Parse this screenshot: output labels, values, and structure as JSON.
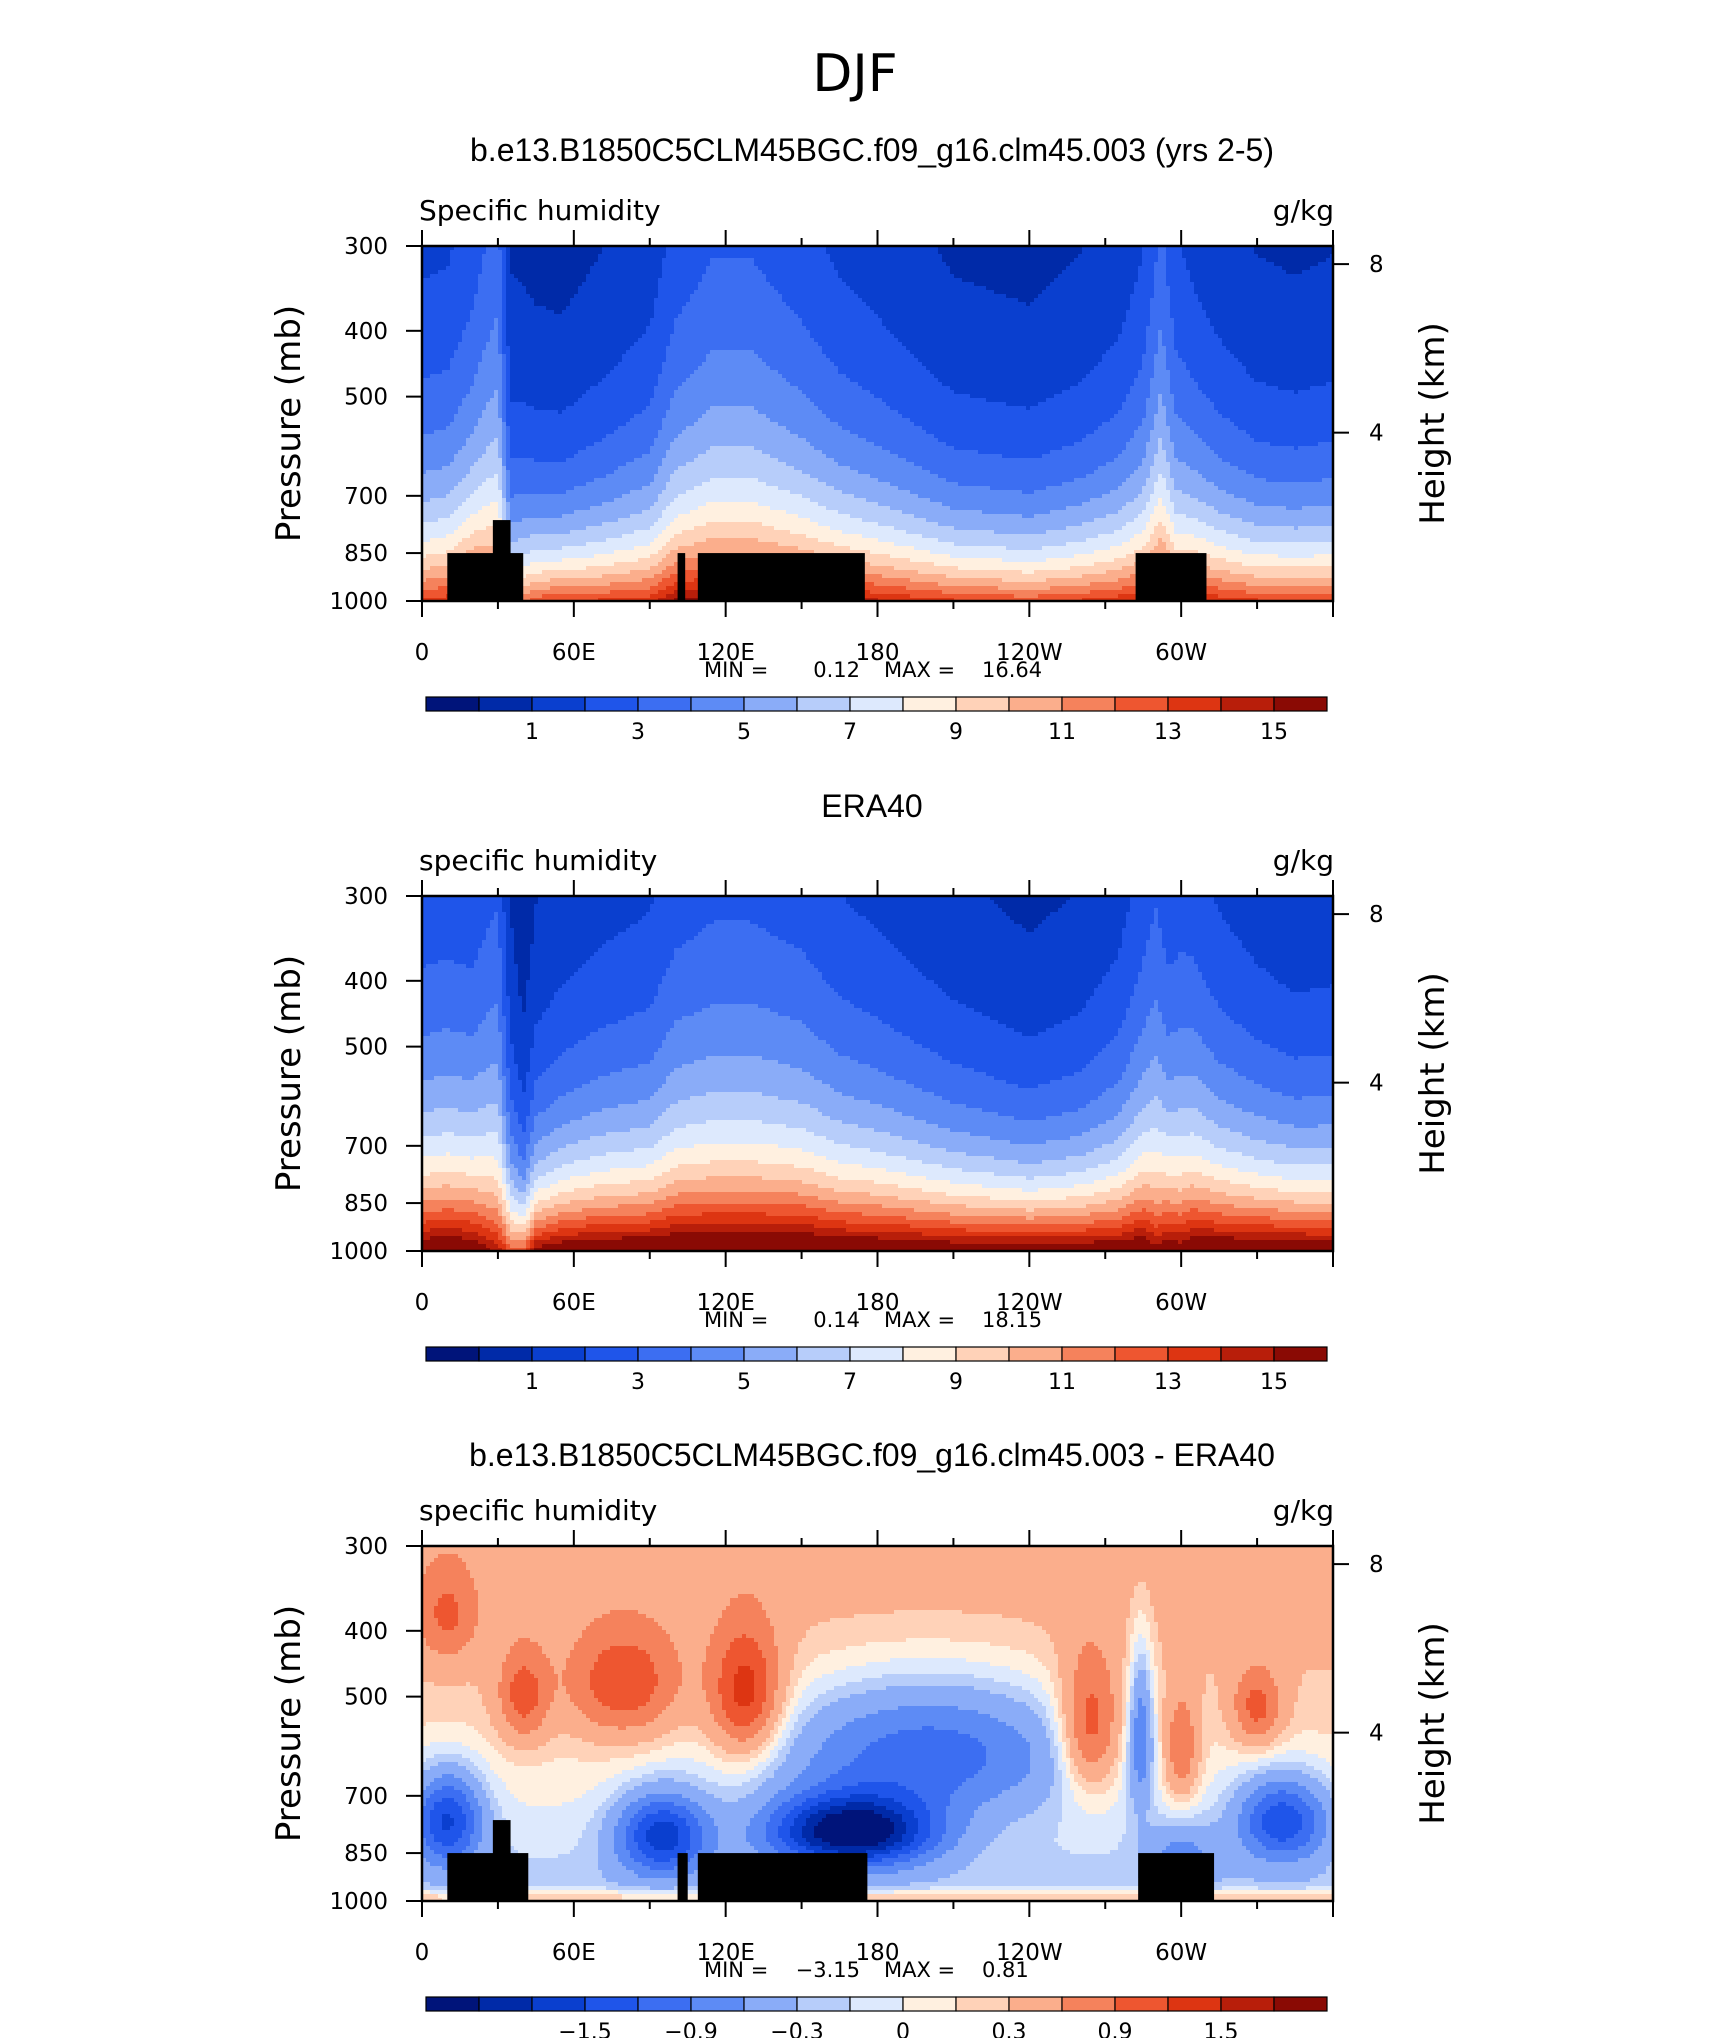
{
  "page_title": "DJF",
  "chart_data": [
    {
      "type": "heatmap",
      "title": "b.e13.B1850C5CLM45BGC.f09_g16.clm45.003 (yrs 2-5)",
      "left_string": "Specific humidity",
      "right_string": "g/kg",
      "xlabel": "",
      "ylabel": "Pressure (mb)",
      "ylabel_right": "Height (km)",
      "x_ticks": [
        "0",
        "60E",
        "120E",
        "180",
        "120W",
        "60W"
      ],
      "y_ticks": [
        "300",
        "400",
        "500",
        "700",
        "850",
        "1000"
      ],
      "y_right_ticks": [
        "8",
        "4"
      ],
      "xlim": [
        0,
        360
      ],
      "ylim": [
        1000,
        300
      ],
      "min_label": "MIN =",
      "min_value": "0.12",
      "max_label": "MAX =",
      "max_value": "16.64",
      "colorbar_labels": [
        "1",
        "3",
        "5",
        "7",
        "9",
        "11",
        "13",
        "15"
      ],
      "levels_start": 0.5,
      "levels_step": 1,
      "colors": [
        "#00147a",
        "#002aa8",
        "#0a3fcf",
        "#1f55ea",
        "#3c6ef2",
        "#5d8bf5",
        "#8aacf8",
        "#b7cdfa",
        "#dde9fd",
        "#fff0e0",
        "#ffd2b8",
        "#fbae8c",
        "#f5825c",
        "#ee5630",
        "#dd3512",
        "#b81e0a",
        "#8a0a04"
      ],
      "profile": {
        "lon": [
          0,
          10,
          20,
          30,
          35,
          45,
          55,
          70,
          90,
          100,
          115,
          130,
          150,
          165,
          180,
          210,
          240,
          260,
          275,
          285,
          292,
          298,
          305,
          315,
          330,
          345,
          360
        ],
        "surface": [
          13.5,
          14,
          15.5,
          14.5,
          11,
          13,
          13.5,
          13.5,
          14,
          15.5,
          16,
          16,
          15.5,
          15,
          14.5,
          13.5,
          13,
          13.5,
          14,
          14.5,
          15.5,
          14,
          14.5,
          14,
          13.5,
          13.5,
          13.5
        ],
        "decay": [
          380,
          380,
          410,
          520,
          320,
          280,
          270,
          300,
          340,
          400,
          440,
          440,
          400,
          360,
          340,
          290,
          280,
          300,
          330,
          380,
          480,
          400,
          360,
          330,
          300,
          290,
          300
        ]
      },
      "land_masks": [
        [
          10,
          40,
          850
        ],
        [
          28,
          35,
          760
        ],
        [
          101,
          104,
          850
        ],
        [
          109,
          175,
          850
        ],
        [
          282,
          310,
          850
        ]
      ]
    },
    {
      "type": "heatmap",
      "title": "ERA40",
      "left_string": "specific humidity",
      "right_string": "g/kg",
      "xlabel": "",
      "ylabel": "Pressure (mb)",
      "ylabel_right": "Height (km)",
      "x_ticks": [
        "0",
        "60E",
        "120E",
        "180",
        "120W",
        "60W"
      ],
      "y_ticks": [
        "300",
        "400",
        "500",
        "700",
        "850",
        "1000"
      ],
      "y_right_ticks": [
        "8",
        "4"
      ],
      "xlim": [
        0,
        360
      ],
      "ylim": [
        1000,
        300
      ],
      "min_label": "MIN =",
      "min_value": "0.14",
      "max_label": "MAX =",
      "max_value": "18.15",
      "colorbar_labels": [
        "1",
        "3",
        "5",
        "7",
        "9",
        "11",
        "13",
        "15"
      ],
      "levels_start": 0.5,
      "levels_step": 1,
      "colors": [
        "#00147a",
        "#002aa8",
        "#0a3fcf",
        "#1f55ea",
        "#3c6ef2",
        "#5d8bf5",
        "#8aacf8",
        "#b7cdfa",
        "#dde9fd",
        "#fff0e0",
        "#ffd2b8",
        "#fbae8c",
        "#f5825c",
        "#ee5630",
        "#dd3512",
        "#b81e0a",
        "#8a0a04"
      ],
      "profile": {
        "lon": [
          0,
          10,
          20,
          30,
          35,
          40,
          45,
          55,
          70,
          90,
          100,
          115,
          130,
          150,
          165,
          180,
          210,
          240,
          260,
          275,
          285,
          290,
          295,
          300,
          305,
          315,
          330,
          345,
          360
        ],
        "surface": [
          17,
          17.5,
          17,
          15,
          13,
          13,
          16,
          17,
          17.5,
          17.5,
          18,
          18,
          18,
          18,
          17.5,
          17.5,
          17,
          17,
          17,
          17,
          17.5,
          16,
          17,
          16.5,
          17.5,
          17.5,
          17.5,
          17.5,
          17
        ],
        "decay": [
          380,
          380,
          380,
          460,
          300,
          240,
          280,
          300,
          320,
          340,
          380,
          400,
          400,
          380,
          350,
          330,
          290,
          260,
          280,
          320,
          380,
          440,
          380,
          400,
          380,
          340,
          310,
          290,
          300
        ]
      },
      "land_masks": []
    },
    {
      "type": "heatmap",
      "title": "b.e13.B1850C5CLM45BGC.f09_g16.clm45.003 - ERA40",
      "left_string": "specific humidity",
      "right_string": "g/kg",
      "xlabel": "",
      "ylabel": "Pressure (mb)",
      "ylabel_right": "Height (km)",
      "x_ticks": [
        "0",
        "60E",
        "120E",
        "180",
        "120W",
        "60W"
      ],
      "y_ticks": [
        "300",
        "400",
        "500",
        "700",
        "850",
        "1000"
      ],
      "y_right_ticks": [
        "8",
        "4"
      ],
      "xlim": [
        0,
        360
      ],
      "ylim": [
        1000,
        300
      ],
      "min_label": "MIN =",
      "min_value": "−3.15",
      "max_label": "MAX =",
      "max_value": "0.81",
      "colorbar_labels": [
        "−1.5",
        "−0.9",
        "−0.3",
        "0",
        "0.3",
        "0.9",
        "1.5"
      ],
      "colorbar_label_levels": [
        -1.5,
        -0.9,
        -0.3,
        0,
        0.3,
        0.9,
        1.5
      ],
      "levels": [
        -2.1,
        -1.8,
        -1.5,
        -1.2,
        -0.9,
        -0.6,
        -0.3,
        -0.15,
        0,
        0.15,
        0.3,
        0.6,
        0.9,
        1.2,
        1.5,
        1.8
      ],
      "colors": [
        "#00147a",
        "#002aa8",
        "#0a3fcf",
        "#1f55ea",
        "#3c6ef2",
        "#5d8bf5",
        "#8aacf8",
        "#b7cdfa",
        "#dde9fd",
        "#fff0e0",
        "#ffd2b8",
        "#fbae8c",
        "#f5825c",
        "#ee5630",
        "#dd3512",
        "#b81e0a",
        "#8a0a04"
      ],
      "land_masks": [
        [
          10,
          42,
          850
        ],
        [
          28,
          35,
          760
        ],
        [
          101,
          105,
          850
        ],
        [
          109,
          176,
          850
        ],
        [
          283,
          313,
          850
        ]
      ]
    }
  ]
}
